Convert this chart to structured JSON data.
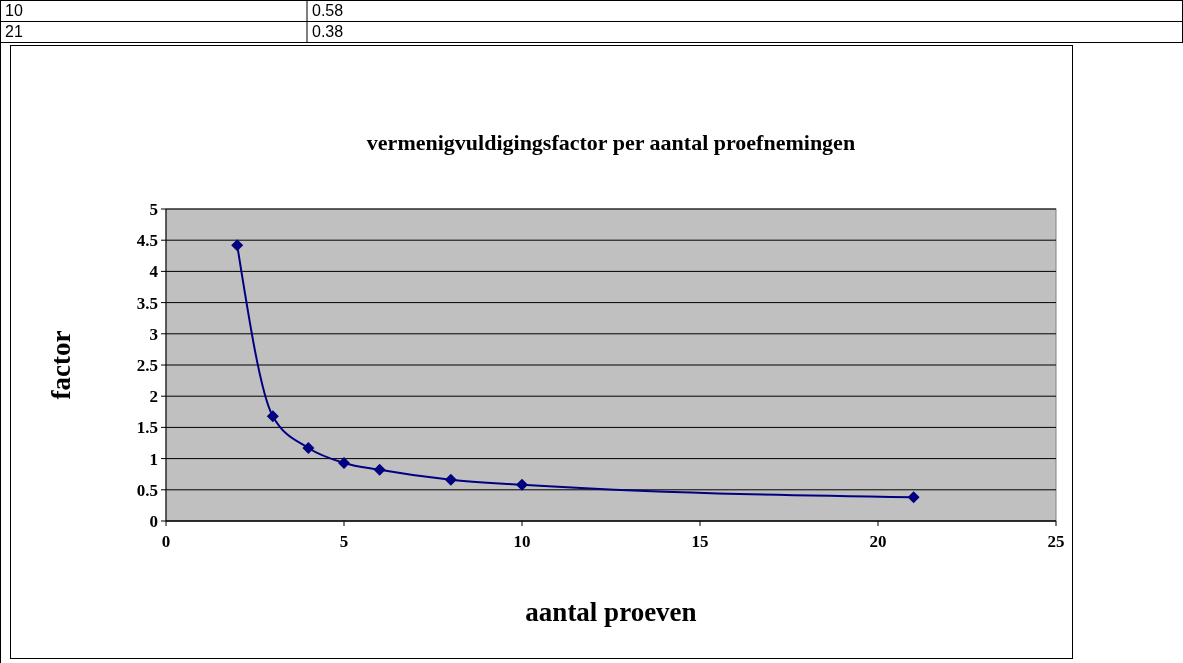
{
  "chart_data": {
    "type": "line",
    "title": "vermenigvuldigingsfactor per aantal proefnemingen",
    "xlabel": "aantal proeven",
    "ylabel": "factor",
    "annotations": [
      "10",
      "0.58",
      "21",
      "0.38"
    ],
    "x": [
      2,
      3,
      4,
      5,
      6,
      8,
      10,
      21
    ],
    "series": [
      {
        "color": "#000080",
        "values": [
          4.42,
          1.68,
          1.17,
          0.93,
          0.82,
          0.66,
          0.58,
          0.38
        ]
      }
    ],
    "xlim": [
      0,
      25
    ],
    "xticks": [
      0,
      5,
      10,
      15,
      20,
      25
    ],
    "ylim": [
      0,
      5
    ],
    "yticks": [
      0,
      0.5,
      1,
      1.5,
      2,
      2.5,
      3,
      3.5,
      4,
      4.5,
      5
    ],
    "grid": "y",
    "marker": "diamond",
    "line_style": "solid"
  }
}
